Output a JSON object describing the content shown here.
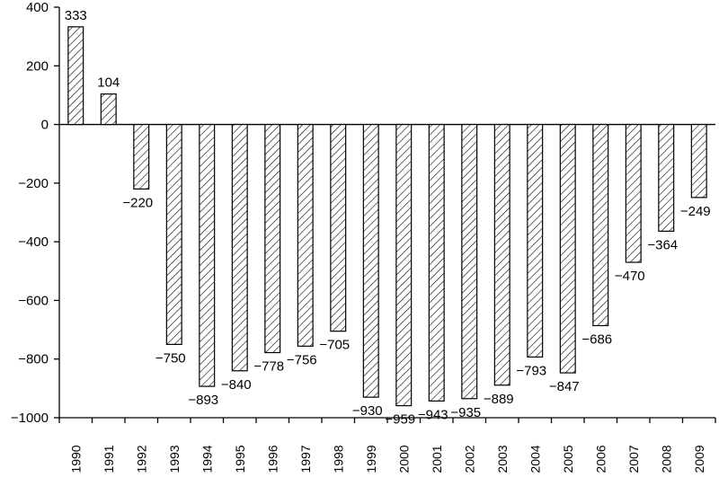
{
  "chart_data": {
    "type": "bar",
    "title": "",
    "xlabel": "",
    "ylabel": "",
    "categories": [
      "1990",
      "1991",
      "1992",
      "1993",
      "1994",
      "1995",
      "1996",
      "1997",
      "1998",
      "1999",
      "2000",
      "2001",
      "2002",
      "2003",
      "2004",
      "2005",
      "2006",
      "2007",
      "2008",
      "2009"
    ],
    "values": [
      333,
      104,
      -220,
      -750,
      -893,
      -840,
      -778,
      -756,
      -705,
      -930,
      -959,
      -943,
      -935,
      -889,
      -793,
      -847,
      -686,
      -470,
      -364,
      -249
    ],
    "data_labels": [
      "333",
      "104",
      "−220",
      "−750",
      "−893",
      "−840",
      "−778",
      "−756",
      "−705",
      "−930",
      "−959",
      "−943",
      "−935",
      "−889",
      "−793",
      "−847",
      "−686",
      "−470",
      "−364",
      "−249"
    ],
    "ylim": [
      -1000,
      400
    ],
    "yticks": [
      400,
      200,
      0,
      -200,
      -400,
      -600,
      -800,
      -1000
    ],
    "ytick_labels": [
      "400",
      "200",
      "0",
      "−200",
      "−400",
      "−600",
      "−800",
      "−1000"
    ],
    "grid": false,
    "legend": "none",
    "bar_fill": "diagonal-hatch",
    "bar_color": "#000000",
    "background": "#ffffff"
  }
}
